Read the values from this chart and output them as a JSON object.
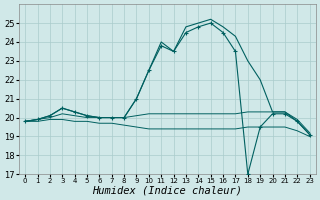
{
  "xlabel": "Humidex (Indice chaleur)",
  "x": [
    0,
    1,
    2,
    3,
    4,
    5,
    6,
    7,
    8,
    9,
    10,
    11,
    12,
    13,
    14,
    15,
    16,
    17,
    18,
    19,
    20,
    21,
    22,
    23
  ],
  "line_main": [
    19.8,
    19.9,
    20.1,
    20.5,
    20.3,
    20.1,
    20.0,
    20.0,
    20.0,
    21.0,
    22.5,
    24.0,
    23.5,
    24.8,
    25.0,
    25.2,
    24.8,
    24.3,
    23.0,
    22.0,
    20.3,
    20.3,
    19.8,
    19.1
  ],
  "line_smooth": [
    19.8,
    19.9,
    20.1,
    20.5,
    20.3,
    20.1,
    20.0,
    20.0,
    20.0,
    21.0,
    22.5,
    23.8,
    23.5,
    24.5,
    24.8,
    25.0,
    24.5,
    23.5,
    17.0,
    19.5,
    20.2,
    20.2,
    19.8,
    19.1
  ],
  "line_flat_high": [
    19.8,
    19.9,
    20.0,
    20.2,
    20.1,
    20.0,
    20.0,
    20.0,
    20.0,
    20.1,
    20.2,
    20.2,
    20.2,
    20.2,
    20.2,
    20.2,
    20.2,
    20.2,
    20.3,
    20.3,
    20.3,
    20.3,
    19.9,
    19.2
  ],
  "line_flat_low": [
    19.8,
    19.8,
    19.9,
    19.9,
    19.8,
    19.8,
    19.7,
    19.7,
    19.6,
    19.5,
    19.4,
    19.4,
    19.4,
    19.4,
    19.4,
    19.4,
    19.4,
    19.4,
    19.5,
    19.5,
    19.5,
    19.5,
    19.3,
    19.0
  ],
  "bg_color": "#d0e8e8",
  "grid_color": "#aacccc",
  "line_color": "#006060",
  "ylim": [
    17,
    26
  ],
  "yticks": [
    17,
    18,
    19,
    20,
    21,
    22,
    23,
    24,
    25
  ],
  "xticks": [
    0,
    1,
    2,
    3,
    4,
    5,
    6,
    7,
    8,
    9,
    10,
    11,
    12,
    13,
    14,
    15,
    16,
    17,
    18,
    19,
    20,
    21,
    22,
    23
  ],
  "tick_fontsize": 6,
  "label_fontsize": 7.5
}
